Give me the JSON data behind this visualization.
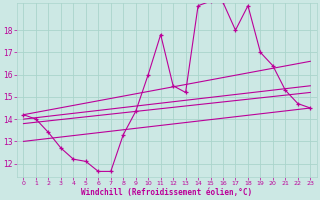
{
  "xlabel": "Windchill (Refroidissement éolien,°C)",
  "background_color": "#cce8e4",
  "grid_color": "#aad4cc",
  "line_color": "#bb0099",
  "x_ticks": [
    0,
    1,
    2,
    3,
    4,
    5,
    6,
    7,
    8,
    9,
    10,
    11,
    12,
    13,
    14,
    15,
    16,
    17,
    18,
    19,
    20,
    21,
    22,
    23
  ],
  "y_ticks": [
    12,
    13,
    14,
    15,
    16,
    17,
    18
  ],
  "xlim": [
    -0.5,
    23.5
  ],
  "ylim": [
    11.4,
    19.2
  ],
  "series_main": {
    "x": [
      0,
      1,
      2,
      3,
      4,
      5,
      6,
      7,
      8,
      9,
      10,
      11,
      12,
      13,
      14,
      15,
      16,
      17,
      18,
      19,
      20,
      21,
      22,
      23
    ],
    "y": [
      14.2,
      14.0,
      13.4,
      12.7,
      12.2,
      12.1,
      11.65,
      11.65,
      13.3,
      14.35,
      16.0,
      17.8,
      15.5,
      15.2,
      19.1,
      19.3,
      19.25,
      18.0,
      19.1,
      17.0,
      16.4,
      15.3,
      14.7,
      14.5
    ]
  },
  "line_upper": {
    "x": [
      0,
      23
    ],
    "y": [
      14.2,
      16.6
    ]
  },
  "line_mid1": {
    "x": [
      0,
      23
    ],
    "y": [
      14.0,
      15.5
    ]
  },
  "line_mid2": {
    "x": [
      0,
      23
    ],
    "y": [
      13.8,
      15.2
    ]
  },
  "line_lower": {
    "x": [
      0,
      23
    ],
    "y": [
      13.0,
      14.5
    ]
  }
}
